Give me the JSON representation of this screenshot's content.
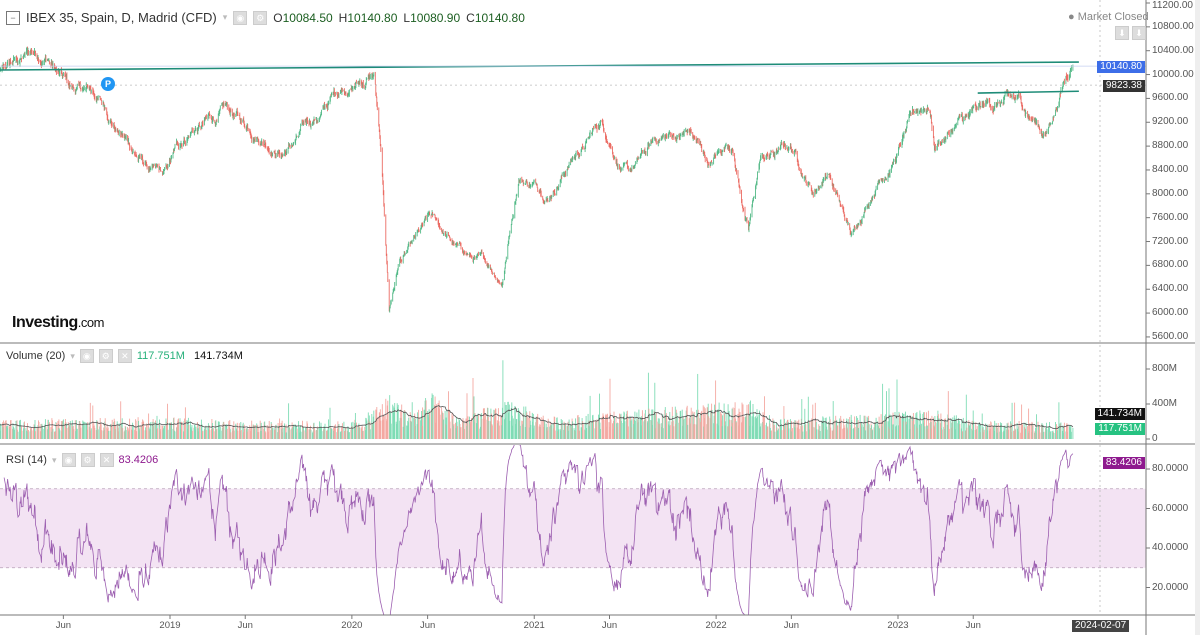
{
  "header": {
    "symbol": "IBEX 35, Spain, D, Madrid (CFD)",
    "ohlc": [
      {
        "label": "O",
        "value": "10084.50"
      },
      {
        "label": "H",
        "value": "10140.80"
      },
      {
        "label": "L",
        "value": "10080.90"
      },
      {
        "label": "C",
        "value": "10140.80"
      }
    ]
  },
  "status": "Market Closed",
  "logo": {
    "main": "Investing",
    "suffix": ".com"
  },
  "marker": "P",
  "volume_pane": {
    "title": "Volume (20)",
    "volume": "117.751M",
    "ma": "141.734M"
  },
  "rsi_pane": {
    "title": "RSI (14)",
    "value": "83.4206"
  },
  "price_axis": {
    "ticks": [
      "11200.00",
      "10800.00",
      "10400.00",
      "10000.00",
      "9600.00",
      "9200.00",
      "8800.00",
      "8400.00",
      "8000.00",
      "7600.00",
      "7200.00",
      "6800.00",
      "6400.00",
      "6000.00",
      "5600.00"
    ],
    "last_price": "10140.80",
    "crosshair_price": "9823.38"
  },
  "volume_axis": {
    "ticks": [
      "800M",
      "400M",
      "0"
    ],
    "ma_tag": "141.734M",
    "volume_tag": "117.751M"
  },
  "rsi_axis": {
    "ticks": [
      "80.0000",
      "60.0000",
      "40.0000",
      "20.0000"
    ],
    "value_tag": "83.4206"
  },
  "time_axis": {
    "ticks": [
      {
        "label": "Jun",
        "date": "2018-06-01"
      },
      {
        "label": "2019",
        "date": "2019-01-01"
      },
      {
        "label": "Jun",
        "date": "2019-06-01"
      },
      {
        "label": "2020",
        "date": "2020-01-01"
      },
      {
        "label": "Jun",
        "date": "2020-06-01"
      },
      {
        "label": "2021",
        "date": "2021-01-01"
      },
      {
        "label": "Jun",
        "date": "2021-06-01"
      },
      {
        "label": "2022",
        "date": "2022-01-01"
      },
      {
        "label": "Jun",
        "date": "2022-06-01"
      },
      {
        "label": "2023",
        "date": "2023-01-01"
      },
      {
        "label": "Jun",
        "date": "2023-06-01"
      }
    ],
    "crosshair_date": "2024-02-07"
  },
  "colors": {
    "up": "#53b987",
    "down": "#eb6b63",
    "volume_up": "#7fdcb5",
    "volume_down": "#f4a9a2",
    "trendline": "#1e8c78",
    "rsi": "#9c5fb0",
    "rsi_band": "#f3e3f3",
    "last_price_tag": "#3d6ee8",
    "rsi_tag": "#8e1a8e"
  },
  "chart_data": [
    {
      "type": "candlestick",
      "title": "IBEX 35, Spain, D, Madrid (CFD)",
      "ylim": [
        5600,
        11200
      ],
      "points": [
        [
          "2018-01-15",
          9900
        ],
        [
          "2018-05-01",
          10250
        ],
        [
          "2018-06-15",
          9825
        ],
        [
          "2018-08-01",
          9660
        ],
        [
          "2018-10-15",
          8740
        ],
        [
          "2018-12-20",
          8400
        ],
        [
          "2019-02-15",
          9070
        ],
        [
          "2019-04-20",
          9490
        ],
        [
          "2019-05-30",
          9150
        ],
        [
          "2019-08-15",
          8650
        ],
        [
          "2019-11-01",
          9400
        ],
        [
          "2019-12-20",
          9660
        ],
        [
          "2020-02-15",
          10040
        ],
        [
          "2020-02-28",
          8740
        ],
        [
          "2020-03-16",
          6050
        ],
        [
          "2020-04-05",
          6890
        ],
        [
          "2020-06-05",
          7645
        ],
        [
          "2020-08-01",
          7140
        ],
        [
          "2020-10-28",
          6470
        ],
        [
          "2020-12-01",
          8230
        ],
        [
          "2021-01-28",
          7900
        ],
        [
          "2021-03-15",
          8570
        ],
        [
          "2021-05-15",
          9240
        ],
        [
          "2021-07-10",
          8400
        ],
        [
          "2021-09-10",
          8900
        ],
        [
          "2021-11-10",
          9070
        ],
        [
          "2021-12-20",
          8480
        ],
        [
          "2022-02-01",
          8735
        ],
        [
          "2022-03-07",
          7390
        ],
        [
          "2022-03-30",
          8570
        ],
        [
          "2022-05-30",
          8820
        ],
        [
          "2022-07-15",
          7980
        ],
        [
          "2022-08-15",
          8320
        ],
        [
          "2022-10-01",
          7310
        ],
        [
          "2022-11-20",
          8150
        ],
        [
          "2023-01-20",
          9240
        ],
        [
          "2023-03-05",
          9400
        ],
        [
          "2023-03-15",
          8735
        ],
        [
          "2023-05-01",
          9240
        ],
        [
          "2023-06-20",
          9490
        ],
        [
          "2023-08-01",
          9570
        ],
        [
          "2023-09-10",
          9400
        ],
        [
          "2023-10-25",
          8990
        ],
        [
          "2023-12-18",
          10140.8
        ]
      ],
      "trendlines": [
        {
          "from": [
            "2018-01-02",
            10075
          ],
          "to": [
            "2023-12-30",
            10210
          ]
        },
        {
          "from": [
            "2023-06-10",
            9690
          ],
          "to": [
            "2023-12-30",
            9720
          ]
        }
      ],
      "horizontal_lines": [
        10140.8,
        9823.38
      ]
    },
    {
      "type": "bar",
      "title": "Volume (20)",
      "ylim": [
        0,
        1000
      ],
      "unit": "M",
      "ma_points": [
        [
          "2018-01-15",
          160
        ],
        [
          "2018-12-15",
          190
        ],
        [
          "2019-06-01",
          160
        ],
        [
          "2020-01-15",
          150
        ],
        [
          "2020-03-16",
          390
        ],
        [
          "2020-05-01",
          230
        ],
        [
          "2020-06-10",
          390
        ],
        [
          "2020-08-01",
          200
        ],
        [
          "2020-11-15",
          330
        ],
        [
          "2021-02-01",
          190
        ],
        [
          "2022-03-10",
          330
        ],
        [
          "2022-05-01",
          170
        ],
        [
          "2023-03-20",
          250
        ],
        [
          "2023-06-01",
          160
        ],
        [
          "2023-12-18",
          141.734
        ]
      ]
    },
    {
      "type": "line",
      "title": "RSI (14)",
      "ylim": [
        0,
        100
      ],
      "bands": [
        30,
        70
      ],
      "last_value": 83.4206
    }
  ]
}
